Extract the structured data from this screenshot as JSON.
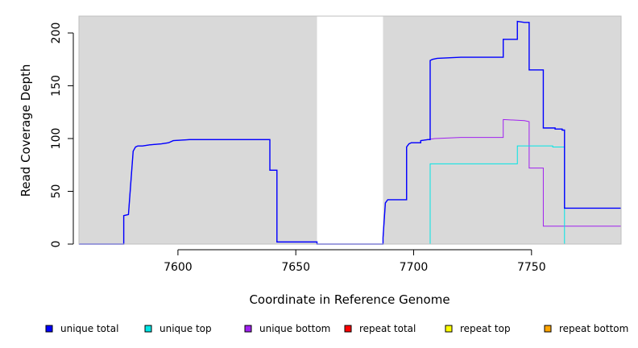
{
  "chart_data": {
    "type": "line",
    "step": true,
    "xlabel": "Coordinate in Reference Genome",
    "ylabel": "Read Coverage Depth",
    "xlim": [
      7558,
      7788
    ],
    "ylim": [
      0,
      216
    ],
    "x_ticks": [
      7600,
      7650,
      7700,
      7750
    ],
    "y_ticks": [
      0,
      50,
      100,
      150,
      200
    ],
    "background": "#d9d9d9",
    "gap_region": [
      7659,
      7687
    ],
    "legend_position": "bottom",
    "series": [
      {
        "name": "unique total",
        "color": "#0000ff",
        "points": [
          [
            7558,
            0
          ],
          [
            7577,
            0
          ],
          [
            7577,
            27
          ],
          [
            7579,
            28
          ],
          [
            7581,
            88
          ],
          [
            7582,
            92
          ],
          [
            7583,
            93
          ],
          [
            7585,
            93
          ],
          [
            7588,
            94
          ],
          [
            7593,
            95
          ],
          [
            7596,
            96
          ],
          [
            7598,
            98
          ],
          [
            7605,
            99
          ],
          [
            7639,
            99
          ],
          [
            7639,
            70
          ],
          [
            7642,
            70
          ],
          [
            7642,
            2
          ],
          [
            7659,
            2
          ],
          [
            7659,
            0
          ],
          [
            7687,
            0
          ],
          [
            7687,
            6
          ],
          [
            7688,
            39
          ],
          [
            7689,
            42
          ],
          [
            7697,
            42
          ],
          [
            7697,
            92
          ],
          [
            7698,
            95
          ],
          [
            7699,
            96
          ],
          [
            7703,
            96
          ],
          [
            7703,
            98
          ],
          [
            7706,
            99
          ],
          [
            7707,
            99
          ],
          [
            7707,
            174
          ],
          [
            7708,
            175
          ],
          [
            7710,
            176
          ],
          [
            7720,
            177
          ],
          [
            7738,
            177
          ],
          [
            7738,
            194
          ],
          [
            7744,
            194
          ],
          [
            7744,
            211
          ],
          [
            7747,
            210
          ],
          [
            7749,
            210
          ],
          [
            7749,
            165
          ],
          [
            7755,
            165
          ],
          [
            7755,
            110
          ],
          [
            7760,
            110
          ],
          [
            7760,
            109
          ],
          [
            7763,
            109
          ],
          [
            7763,
            108
          ],
          [
            7764,
            108
          ],
          [
            7764,
            34
          ],
          [
            7788,
            34
          ]
        ]
      },
      {
        "name": "unique top",
        "color": "#00e5e5",
        "points": [
          [
            7558,
            0
          ],
          [
            7707,
            0
          ],
          [
            7707,
            76
          ],
          [
            7744,
            76
          ],
          [
            7744,
            93
          ],
          [
            7759,
            93
          ],
          [
            7759,
            92
          ],
          [
            7764,
            92
          ],
          [
            7764,
            18
          ],
          [
            7764,
            0
          ],
          [
            7788,
            0
          ]
        ]
      },
      {
        "name": "unique bottom",
        "color": "#a020f0",
        "points": [
          [
            7558,
            0
          ],
          [
            7577,
            0
          ],
          [
            7577,
            27
          ],
          [
            7579,
            28
          ],
          [
            7581,
            88
          ],
          [
            7582,
            92
          ],
          [
            7583,
            93
          ],
          [
            7585,
            93
          ],
          [
            7588,
            94
          ],
          [
            7593,
            95
          ],
          [
            7596,
            96
          ],
          [
            7598,
            98
          ],
          [
            7605,
            99
          ],
          [
            7639,
            99
          ],
          [
            7639,
            70
          ],
          [
            7642,
            70
          ],
          [
            7642,
            2
          ],
          [
            7659,
            2
          ],
          [
            7659,
            0
          ],
          [
            7687,
            0
          ],
          [
            7687,
            6
          ],
          [
            7688,
            39
          ],
          [
            7689,
            42
          ],
          [
            7697,
            42
          ],
          [
            7697,
            92
          ],
          [
            7698,
            95
          ],
          [
            7699,
            96
          ],
          [
            7703,
            96
          ],
          [
            7703,
            98
          ],
          [
            7706,
            99
          ],
          [
            7709,
            100
          ],
          [
            7720,
            101
          ],
          [
            7738,
            101
          ],
          [
            7738,
            118
          ],
          [
            7747,
            117
          ],
          [
            7749,
            116
          ],
          [
            7749,
            72
          ],
          [
            7755,
            72
          ],
          [
            7755,
            17
          ],
          [
            7788,
            17
          ]
        ]
      },
      {
        "name": "repeat total",
        "color": "#ff0000",
        "points": [
          [
            7558,
            0
          ],
          [
            7788,
            0
          ]
        ]
      },
      {
        "name": "repeat top",
        "color": "#ffff00",
        "points": [
          [
            7558,
            0
          ],
          [
            7788,
            0
          ]
        ]
      },
      {
        "name": "repeat bottom",
        "color": "#ffa500",
        "points": [
          [
            7558,
            0
          ],
          [
            7707,
            0
          ],
          [
            7788,
            0
          ]
        ]
      }
    ]
  }
}
